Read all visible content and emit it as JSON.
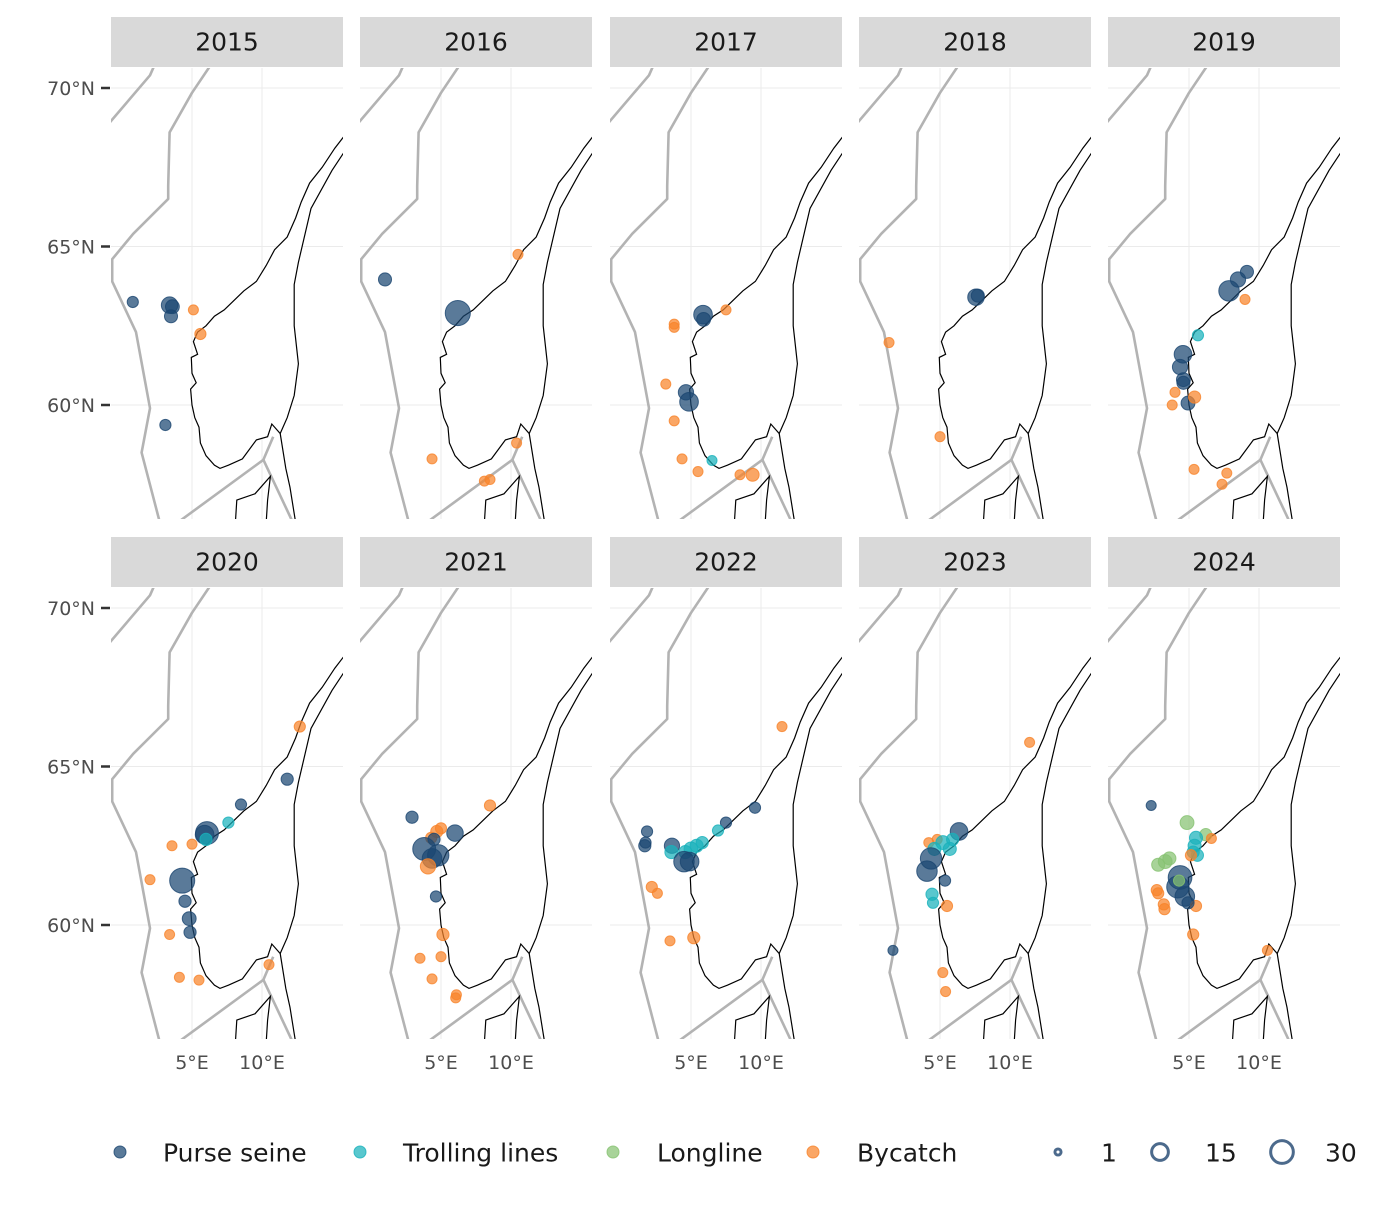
{
  "chart_data": {
    "type": "scatter",
    "facet_by": "year",
    "facets": [
      "2015",
      "2016",
      "2017",
      "2018",
      "2019",
      "2020",
      "2021",
      "2022",
      "2023",
      "2024"
    ],
    "x_axis": {
      "range": [
        -0.8,
        15.8
      ],
      "ticks": [
        5,
        10
      ],
      "tick_labels": [
        "5°E",
        "10°E"
      ]
    },
    "y_axis": {
      "range": [
        56.4,
        70.6
      ],
      "ticks": [
        60,
        65,
        70
      ],
      "tick_labels": [
        "60°N",
        "65°N",
        "70°N"
      ]
    },
    "grid": true,
    "basemap": "Norway coastline with EEZ boundaries",
    "legend_placement": "bottom",
    "color_legend": [
      {
        "label": "Purse seine",
        "color": "#1b4671"
      },
      {
        "label": "Trolling lines",
        "color": "#19b2bb"
      },
      {
        "label": "Longline",
        "color": "#86c271"
      },
      {
        "label": "Bycatch",
        "color": "#f8832a"
      }
    ],
    "size_legend": [
      {
        "label": "1",
        "value": 1
      },
      {
        "label": "15",
        "value": 15
      },
      {
        "label": "30",
        "value": 30
      }
    ],
    "point_fields": [
      "lon",
      "lat",
      "count",
      "gear_index"
    ],
    "points": {
      "2015": [
        [
          0.77,
          63.25,
          3,
          0
        ],
        [
          3.4,
          63.15,
          10,
          0
        ],
        [
          3.6,
          63.1,
          6,
          0
        ],
        [
          3.5,
          62.8,
          5,
          0
        ],
        [
          3.1,
          59.37,
          3,
          0
        ],
        [
          5.1,
          63.0,
          2,
          3
        ],
        [
          5.6,
          62.24,
          3,
          3
        ]
      ],
      "2016": [
        [
          1.0,
          63.96,
          5,
          0
        ],
        [
          6.2,
          62.9,
          30,
          0
        ],
        [
          10.5,
          64.75,
          2,
          3
        ],
        [
          4.36,
          58.3,
          2,
          3
        ],
        [
          10.4,
          58.8,
          2,
          3
        ],
        [
          8.1,
          57.6,
          2,
          3
        ],
        [
          8.5,
          57.65,
          2,
          3
        ]
      ],
      "2017": [
        [
          5.86,
          62.85,
          14,
          0
        ],
        [
          5.9,
          62.7,
          6,
          0
        ],
        [
          7.5,
          63.0,
          2,
          3
        ],
        [
          3.8,
          62.55,
          2,
          3
        ],
        [
          3.8,
          62.45,
          2,
          3
        ],
        [
          3.2,
          60.66,
          2,
          3
        ],
        [
          4.64,
          60.4,
          8,
          0
        ],
        [
          4.86,
          60.1,
          14,
          0
        ],
        [
          3.8,
          59.5,
          2,
          3
        ],
        [
          4.36,
          58.3,
          2,
          3
        ],
        [
          6.5,
          58.25,
          2,
          1
        ],
        [
          5.5,
          57.9,
          2,
          3
        ],
        [
          8.5,
          57.8,
          2,
          3
        ],
        [
          9.4,
          57.8,
          5,
          3
        ]
      ],
      "2018": [
        [
          7.57,
          63.4,
          10,
          0
        ],
        [
          7.7,
          63.45,
          5,
          0
        ],
        [
          1.36,
          61.97,
          2,
          3
        ],
        [
          5.0,
          59.0,
          2,
          3
        ]
      ],
      "2019": [
        [
          9.14,
          64.2,
          5,
          0
        ],
        [
          8.5,
          63.96,
          8,
          0
        ],
        [
          7.86,
          63.6,
          18,
          0
        ],
        [
          9.0,
          63.33,
          2,
          3
        ],
        [
          5.64,
          62.2,
          3,
          1
        ],
        [
          4.57,
          61.6,
          12,
          0
        ],
        [
          4.36,
          61.2,
          8,
          0
        ],
        [
          4.6,
          60.8,
          6,
          0
        ],
        [
          4.6,
          60.7,
          5,
          0
        ],
        [
          4.0,
          60.4,
          2,
          3
        ],
        [
          3.8,
          60.0,
          2,
          3
        ],
        [
          4.93,
          60.06,
          6,
          0
        ],
        [
          5.4,
          60.25,
          4,
          3
        ],
        [
          5.36,
          57.97,
          2,
          3
        ],
        [
          7.7,
          57.85,
          2,
          3
        ],
        [
          7.36,
          57.5,
          2,
          3
        ]
      ],
      "2020": [
        [
          12.7,
          66.26,
          3,
          3
        ],
        [
          11.8,
          64.6,
          4,
          0
        ],
        [
          8.5,
          63.8,
          3,
          0
        ],
        [
          7.6,
          63.23,
          3,
          1
        ],
        [
          6.07,
          62.9,
          24,
          0
        ],
        [
          5.9,
          62.85,
          14,
          0
        ],
        [
          6.0,
          62.7,
          4,
          1
        ],
        [
          3.57,
          62.5,
          2,
          3
        ],
        [
          5.0,
          62.55,
          2,
          3
        ],
        [
          2.0,
          61.43,
          2,
          3
        ],
        [
          4.3,
          61.4,
          30,
          0
        ],
        [
          4.5,
          60.75,
          4,
          0
        ],
        [
          4.8,
          60.2,
          6,
          0
        ],
        [
          4.86,
          59.77,
          4,
          0
        ],
        [
          3.4,
          59.7,
          2,
          3
        ],
        [
          4.1,
          58.35,
          2,
          3
        ],
        [
          5.5,
          58.26,
          2,
          3
        ],
        [
          10.5,
          58.75,
          2,
          3
        ]
      ],
      "2021": [
        [
          2.93,
          63.4,
          4,
          0
        ],
        [
          8.5,
          63.77,
          3,
          3
        ],
        [
          4.7,
          62.95,
          4,
          3
        ],
        [
          5.0,
          63.05,
          3,
          3
        ],
        [
          4.3,
          62.75,
          3,
          3
        ],
        [
          6.0,
          62.9,
          10,
          0
        ],
        [
          3.8,
          62.4,
          24,
          0
        ],
        [
          4.36,
          62.1,
          16,
          0
        ],
        [
          4.8,
          62.2,
          20,
          0
        ],
        [
          4.07,
          61.85,
          8,
          3
        ],
        [
          4.5,
          62.7,
          4,
          0
        ],
        [
          4.64,
          60.9,
          3,
          0
        ],
        [
          5.14,
          59.7,
          4,
          3
        ],
        [
          3.5,
          58.95,
          2,
          3
        ],
        [
          5.0,
          59.0,
          2,
          3
        ],
        [
          4.36,
          58.3,
          2,
          3
        ],
        [
          6.1,
          57.8,
          2,
          3
        ],
        [
          6.05,
          57.7,
          2,
          3
        ]
      ],
      "2022": [
        [
          11.5,
          66.26,
          2,
          3
        ],
        [
          9.57,
          63.7,
          3,
          0
        ],
        [
          7.5,
          63.23,
          3,
          0
        ],
        [
          6.93,
          62.98,
          3,
          1
        ],
        [
          1.86,
          62.95,
          3,
          0
        ],
        [
          1.7,
          62.5,
          4,
          0
        ],
        [
          1.75,
          62.6,
          3,
          0
        ],
        [
          3.64,
          62.5,
          8,
          0
        ],
        [
          5.4,
          62.5,
          5,
          1
        ],
        [
          5.0,
          62.4,
          6,
          1
        ],
        [
          4.6,
          62.3,
          5,
          1
        ],
        [
          3.6,
          62.3,
          5,
          1
        ],
        [
          4.5,
          62.0,
          18,
          0
        ],
        [
          4.9,
          62.0,
          14,
          0
        ],
        [
          5.8,
          62.6,
          4,
          1
        ],
        [
          2.2,
          61.2,
          3,
          3
        ],
        [
          2.6,
          61.0,
          2,
          3
        ],
        [
          3.5,
          59.5,
          2,
          3
        ],
        [
          5.2,
          59.6,
          4,
          3
        ]
      ],
      "2023": [
        [
          11.4,
          65.76,
          2,
          3
        ],
        [
          6.36,
          62.95,
          12,
          0
        ],
        [
          4.2,
          62.6,
          2,
          3
        ],
        [
          4.8,
          62.7,
          2,
          3
        ],
        [
          5.2,
          62.6,
          6,
          1
        ],
        [
          5.7,
          62.4,
          5,
          1
        ],
        [
          4.6,
          62.4,
          5,
          1
        ],
        [
          5.9,
          62.7,
          4,
          1
        ],
        [
          4.36,
          62.1,
          20,
          0
        ],
        [
          4.07,
          61.7,
          18,
          0
        ],
        [
          5.36,
          61.4,
          3,
          0
        ],
        [
          4.43,
          60.97,
          4,
          1
        ],
        [
          4.5,
          60.7,
          3,
          1
        ],
        [
          5.5,
          60.6,
          3,
          3
        ],
        [
          1.64,
          59.2,
          2,
          0
        ],
        [
          5.2,
          58.5,
          2,
          3
        ],
        [
          5.4,
          57.9,
          2,
          3
        ]
      ],
      "2024": [
        [
          2.3,
          63.77,
          2,
          0
        ],
        [
          4.86,
          63.23,
          6,
          2
        ],
        [
          6.2,
          62.85,
          4,
          2
        ],
        [
          6.6,
          62.73,
          2,
          3
        ],
        [
          5.5,
          62.75,
          5,
          1
        ],
        [
          5.4,
          62.5,
          5,
          1
        ],
        [
          5.3,
          62.3,
          4,
          1
        ],
        [
          5.6,
          62.2,
          4,
          1
        ],
        [
          5.14,
          62.2,
          3,
          3
        ],
        [
          3.3,
          62.0,
          6,
          2
        ],
        [
          2.8,
          61.9,
          5,
          2
        ],
        [
          3.6,
          62.1,
          5,
          2
        ],
        [
          4.36,
          61.5,
          26,
          0
        ],
        [
          4.2,
          61.2,
          22,
          0
        ],
        [
          4.7,
          60.9,
          16,
          0
        ],
        [
          4.29,
          61.4,
          3,
          2
        ],
        [
          2.7,
          61.1,
          3,
          3
        ],
        [
          2.8,
          61.0,
          3,
          3
        ],
        [
          3.2,
          60.65,
          3,
          3
        ],
        [
          3.25,
          60.5,
          3,
          3
        ],
        [
          5.5,
          60.6,
          3,
          3
        ],
        [
          5.3,
          59.7,
          3,
          3
        ],
        [
          10.6,
          59.2,
          2,
          3
        ],
        [
          4.93,
          60.7,
          4,
          0
        ]
      ]
    }
  }
}
